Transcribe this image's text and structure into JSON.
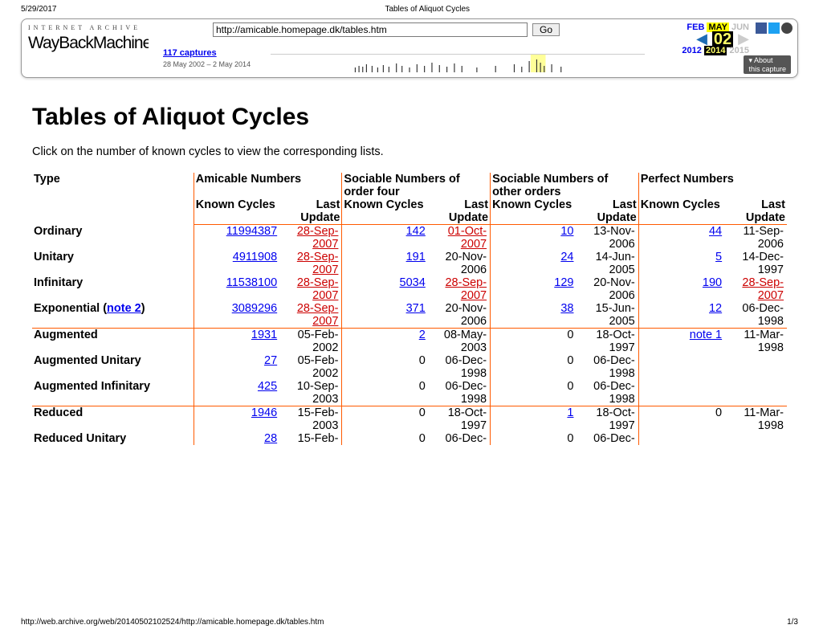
{
  "print": {
    "date": "5/29/2017",
    "title": "Tables of Aliquot Cycles",
    "footer_url": "http://web.archive.org/web/20140502102524/http://amicable.homepage.dk/tables.htm",
    "footer_page": "1/3"
  },
  "wayback": {
    "url": "http://amicable.homepage.dk/tables.htm",
    "go": "Go",
    "captures_text": "117 captures",
    "range": "28 May 2002 – 2 May 2014",
    "months": {
      "prev": "FEB",
      "cur": "MAY",
      "next": "JUN"
    },
    "day": "02",
    "years": {
      "prev": "2012",
      "cur": "2014",
      "next": "2015"
    },
    "about": "▾ About",
    "about2": "this capture",
    "logo_top": "INTERNET ARCHIVE"
  },
  "content": {
    "heading": "Tables of Aliquot Cycles",
    "intro": "Click on the number of known cycles to view the corresponding lists."
  },
  "table": {
    "header": {
      "type": "Type",
      "groups": [
        "Amicable Numbers",
        "Sociable Numbers of order four",
        "Sociable Numbers of other orders",
        "Perfect Numbers"
      ],
      "sub": {
        "kc": "Known Cycles",
        "lu": "Last Update"
      }
    },
    "rows": [
      {
        "type": "Ordinary",
        "amicable": {
          "kc": "11994387",
          "kc_link": true,
          "lu": "28-Sep-2007",
          "lu_red": true
        },
        "soc4": {
          "kc": "142",
          "kc_link": true,
          "lu": "01-Oct-2007",
          "lu_red": true
        },
        "soc_other": {
          "kc": "10",
          "kc_link": true,
          "lu": "13-Nov-2006"
        },
        "perfect": {
          "kc": "44",
          "kc_link": true,
          "lu": "11-Sep-2006"
        }
      },
      {
        "type": "Unitary",
        "amicable": {
          "kc": "4911908",
          "kc_link": true,
          "lu": "28-Sep-2007",
          "lu_red": true
        },
        "soc4": {
          "kc": "191",
          "kc_link": true,
          "lu": "20-Nov-2006"
        },
        "soc_other": {
          "kc": "24",
          "kc_link": true,
          "lu": "14-Jun-2005"
        },
        "perfect": {
          "kc": "5",
          "kc_link": true,
          "lu": "14-Dec-1997"
        }
      },
      {
        "type": "Infinitary",
        "amicable": {
          "kc": "11538100",
          "kc_link": true,
          "lu": "28-Sep-2007",
          "lu_red": true
        },
        "soc4": {
          "kc": "5034",
          "kc_link": true,
          "lu": "28-Sep-2007",
          "lu_red": true
        },
        "soc_other": {
          "kc": "129",
          "kc_link": true,
          "lu": "20-Nov-2006"
        },
        "perfect": {
          "kc": "190",
          "kc_link": true,
          "lu": "28-Sep-2007",
          "lu_red": true
        }
      },
      {
        "type_html": "Exponential (<a class=\"note-link\" data-name=\"note-2-link\" data-interactable=\"true\">note 2</a>)",
        "amicable": {
          "kc": "3089296",
          "kc_link": true,
          "lu": "28-Sep-2007",
          "lu_red": true
        },
        "soc4": {
          "kc": "371",
          "kc_link": true,
          "lu": "20-Nov-2006"
        },
        "soc_other": {
          "kc": "38",
          "kc_link": true,
          "lu": "15-Jun-2005"
        },
        "perfect": {
          "kc": "12",
          "kc_link": true,
          "lu": "06-Dec-1998"
        },
        "hr": true
      },
      {
        "type": "Augmented",
        "amicable": {
          "kc": "1931",
          "kc_link": true,
          "lu": "05-Feb-2002"
        },
        "soc4": {
          "kc": "2",
          "kc_link": true,
          "lu": "08-May-2003"
        },
        "soc_other": {
          "kc": "0",
          "lu": "18-Oct-1997"
        },
        "perfect": {
          "kc_html": "<a class=\"note-link\" data-name=\"note-1-link\" data-interactable=\"true\">note 1</a>",
          "lu": "11-Mar-1998"
        }
      },
      {
        "type": "Augmented Unitary",
        "amicable": {
          "kc": "27",
          "kc_link": true,
          "lu": "05-Feb-2002"
        },
        "soc4": {
          "kc": "0",
          "lu": "06-Dec-1998"
        },
        "soc_other": {
          "kc": "0",
          "lu": "06-Dec-1998"
        },
        "perfect": {}
      },
      {
        "type": "Augmented Infinitary",
        "amicable": {
          "kc": "425",
          "kc_link": true,
          "lu": "10-Sep-2003"
        },
        "soc4": {
          "kc": "0",
          "lu": "06-Dec-1998"
        },
        "soc_other": {
          "kc": "0",
          "lu": "06-Dec-1998"
        },
        "perfect": {},
        "hr": true
      },
      {
        "type": "Reduced",
        "amicable": {
          "kc": "1946",
          "kc_link": true,
          "lu": "15-Feb-2003"
        },
        "soc4": {
          "kc": "0",
          "lu": "18-Oct-1997"
        },
        "soc_other": {
          "kc": "1",
          "kc_link": true,
          "lu": "18-Oct-1997"
        },
        "perfect": {
          "kc": "0",
          "lu": "11-Mar-1998"
        }
      },
      {
        "type": "Reduced Unitary",
        "amicable": {
          "kc": "28",
          "kc_link": true,
          "lu": "15-Feb-"
        },
        "soc4": {
          "kc": "0",
          "lu": "06-Dec-"
        },
        "soc_other": {
          "kc": "0",
          "lu": "06-Dec-"
        },
        "perfect": {}
      }
    ]
  }
}
